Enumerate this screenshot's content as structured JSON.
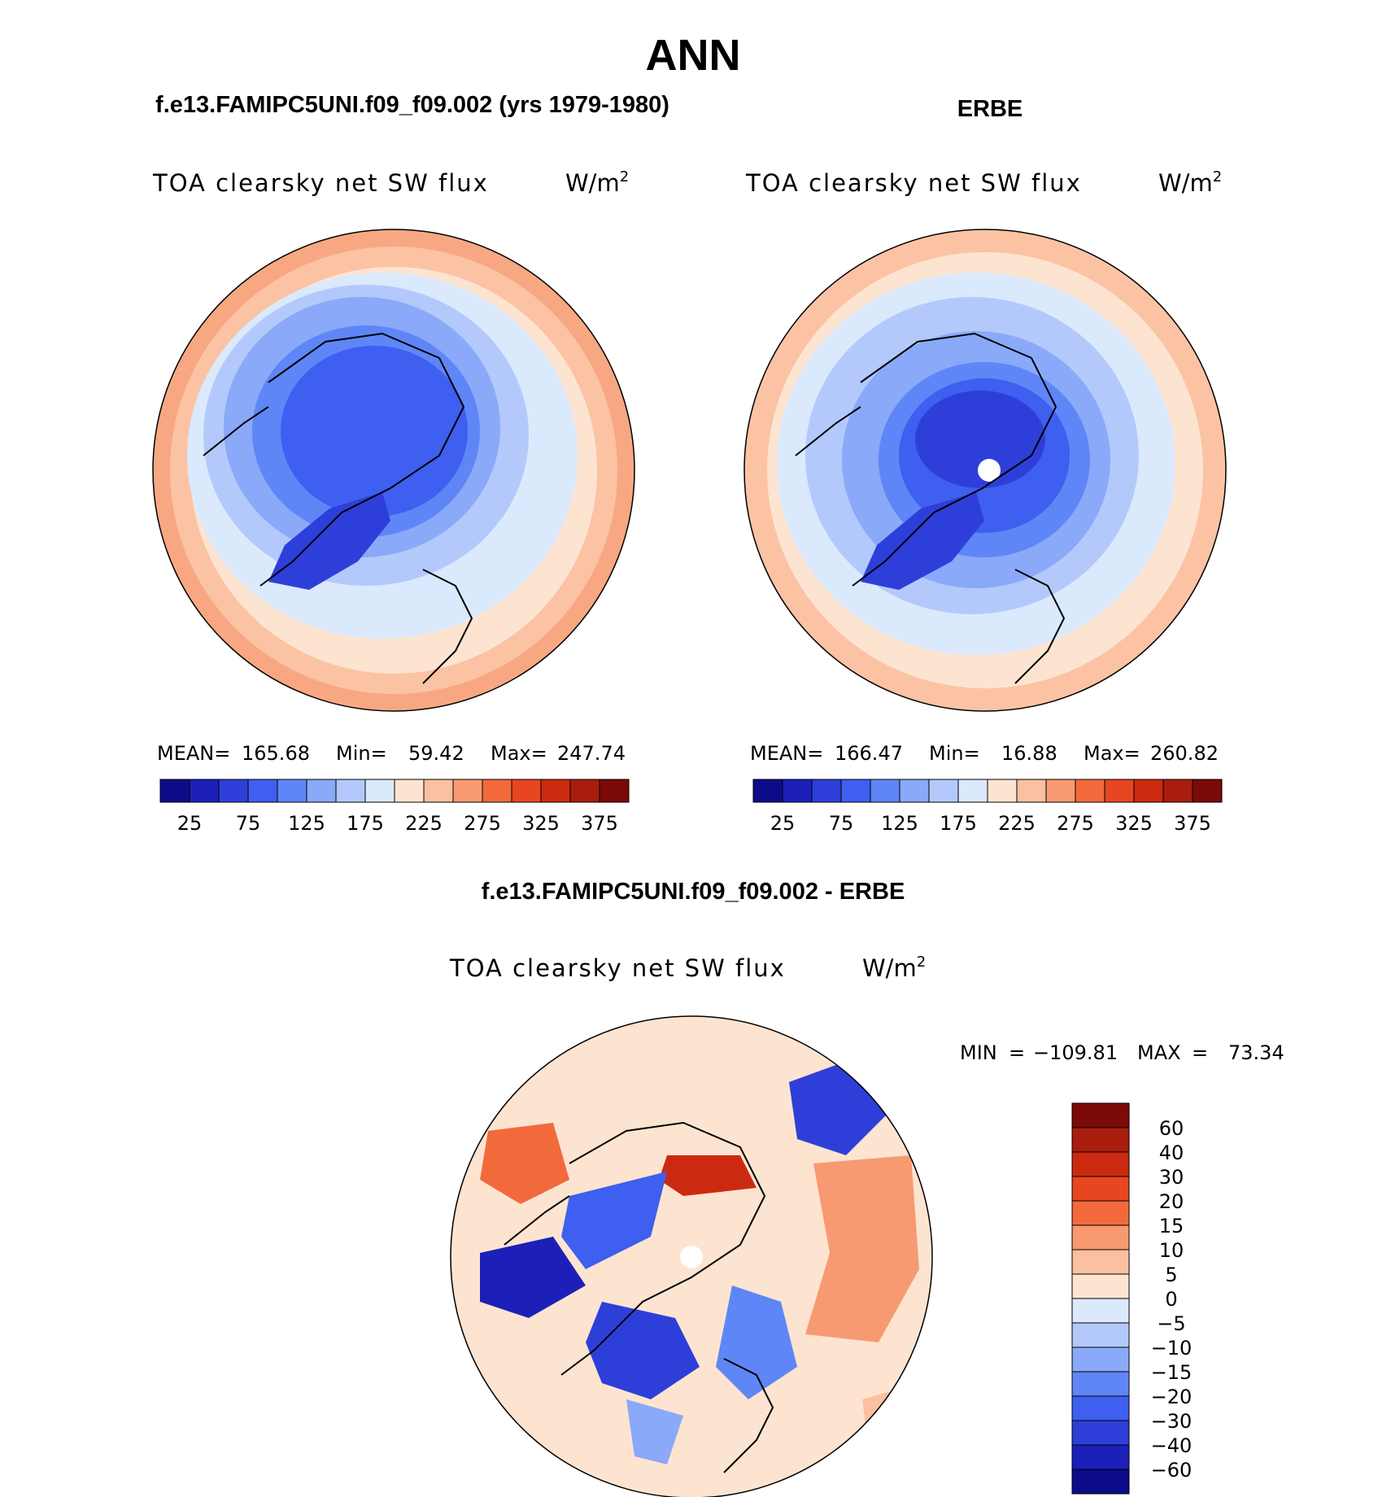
{
  "chart_data": {
    "type": "heatmap",
    "title": "ANN",
    "panels": [
      {
        "id": "model",
        "header": "f.e13.FAMIPC5UNI.f09_f09.002 (yrs 1979-1980)",
        "variable": "TOA clearsky net SW flux",
        "units_base": "W/m",
        "units_exp": "2",
        "stats": {
          "mean_label": "MEAN=",
          "mean": "165.68",
          "min_label": "Min=",
          "min": "59.42",
          "max_label": "Max=",
          "max": "247.74"
        },
        "colorbar_labels": [
          "25",
          "75",
          "125",
          "175",
          "225",
          "275",
          "325",
          "375"
        ]
      },
      {
        "id": "obs",
        "header": "ERBE",
        "variable": "TOA clearsky net SW flux",
        "units_base": "W/m",
        "units_exp": "2",
        "stats": {
          "mean_label": "MEAN=",
          "mean": "166.47",
          "min_label": "Min=",
          "min": "16.88",
          "max_label": "Max=",
          "max": "260.82"
        },
        "colorbar_labels": [
          "25",
          "75",
          "125",
          "175",
          "225",
          "275",
          "325",
          "375"
        ]
      },
      {
        "id": "diff",
        "header": "f.e13.FAMIPC5UNI.f09_f09.002 - ERBE",
        "variable": "TOA clearsky net SW flux",
        "units_base": "W/m",
        "units_exp": "2",
        "stats": {
          "min_label": "MIN",
          "min": "−109.81",
          "max_label": "MAX",
          "max": "73.34"
        },
        "colorbar_labels": [
          "60",
          "40",
          "30",
          "20",
          "15",
          "10",
          "5",
          "0",
          "−5",
          "−10",
          "−15",
          "−20",
          "−30",
          "−40",
          "−60"
        ]
      }
    ],
    "colors": [
      "#0c0c8a",
      "#1d20b8",
      "#2e3fd9",
      "#3e5ff0",
      "#5f86f6",
      "#8aa9f8",
      "#b4c9fb",
      "#dbe9fd",
      "#fde4d1",
      "#fbc0a1",
      "#f79a72",
      "#f26a3c",
      "#e74621",
      "#cc2a10",
      "#a91d0d",
      "#7c0a06"
    ]
  }
}
